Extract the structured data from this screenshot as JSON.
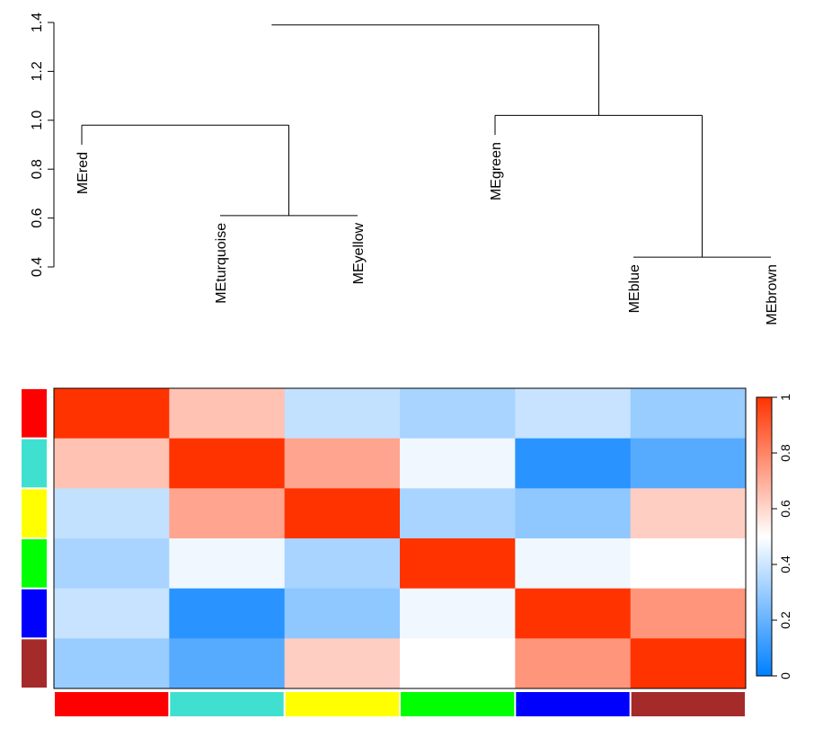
{
  "chart_data": [
    {
      "type": "dendrogram",
      "title": "",
      "y_axis": {
        "ylim": [
          0.4,
          1.4
        ],
        "ticks": [
          0.4,
          0.6,
          0.8,
          1.0,
          1.2,
          1.4
        ],
        "tick_labels": [
          "0.4",
          "0.6",
          "0.8",
          "1.0",
          "1.2",
          "1.4"
        ]
      },
      "leaves": [
        "MEred",
        "MEturquoise",
        "MEyellow",
        "MEgreen",
        "MEblue",
        "MEbrown"
      ],
      "leaf_tops": [
        0.9,
        0.61,
        0.61,
        0.94,
        0.44,
        0.44
      ],
      "merges": [
        {
          "left": 1,
          "right": 2,
          "height": 0.61
        },
        {
          "left": 4,
          "right": 5,
          "height": 0.44
        },
        {
          "left": 0,
          "right": 1.5,
          "height": 0.98
        },
        {
          "left": 3,
          "right": 4.5,
          "height": 1.02
        },
        {
          "left": 1.375,
          "right": 3.75,
          "height": 1.39
        }
      ]
    },
    {
      "type": "heatmap",
      "row_labels": [
        "MEred",
        "MEturquoise",
        "MEyellow",
        "MEgreen",
        "MEblue",
        "MEbrown"
      ],
      "col_labels": [
        "MEred",
        "MEturquoise",
        "MEyellow",
        "MEgreen",
        "MEblue",
        "MEbrown"
      ],
      "row_colors": [
        "#ff0000",
        "#40e0d0",
        "#ffff00",
        "#00ff00",
        "#0000ff",
        "#a52a2a"
      ],
      "col_colors": [
        "#ff0000",
        "#40e0d0",
        "#ffff00",
        "#00ff00",
        "#0000ff",
        "#a52a2a"
      ],
      "values": [
        [
          1.0,
          0.65,
          0.38,
          0.33,
          0.39,
          0.3
        ],
        [
          0.65,
          1.0,
          0.72,
          0.47,
          0.08,
          0.17
        ],
        [
          0.38,
          0.72,
          1.0,
          0.33,
          0.28,
          0.62
        ],
        [
          0.33,
          0.47,
          0.33,
          1.0,
          0.47,
          0.5
        ],
        [
          0.39,
          0.08,
          0.28,
          0.47,
          1.0,
          0.76
        ],
        [
          0.3,
          0.17,
          0.62,
          0.5,
          0.76,
          1.0
        ]
      ],
      "colorbar": {
        "range": [
          0,
          1
        ],
        "ticks": [
          0,
          0.2,
          0.4,
          0.6,
          0.8,
          1
        ],
        "tick_labels": [
          "0",
          "0.2",
          "0.4",
          "0.6",
          "0.8",
          "1"
        ],
        "colors": [
          "#0080ff",
          "#ffffff",
          "#ff3300"
        ]
      }
    }
  ]
}
